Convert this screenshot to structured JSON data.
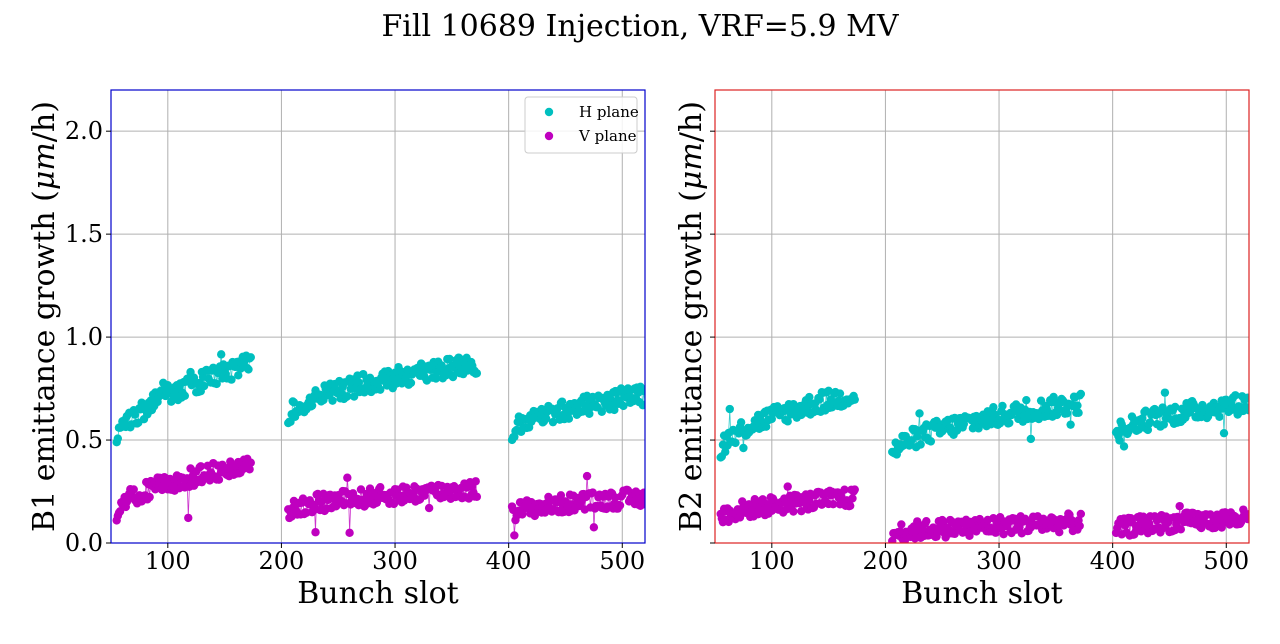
{
  "figure": {
    "title": "Fill 10689 Injection, VRF=5.9 MV",
    "colors": {
      "h": "#00bfbf",
      "v": "#bf00bf",
      "grid": "#b0b0b0"
    }
  },
  "chart_data": [
    {
      "type": "scatter",
      "panel": "B1",
      "frame_color": "#0000cc",
      "ylabel_prefix": "B1 emittance growth (",
      "ylabel_unit": "μm",
      "ylabel_suffix": "/h)",
      "xlabel": "Bunch slot",
      "xlim": [
        50,
        520
      ],
      "ylim": [
        0,
        2.2
      ],
      "xticks": [
        100,
        200,
        300,
        400,
        500
      ],
      "yticks": [
        0.0,
        0.5,
        1.0,
        1.5,
        2.0
      ],
      "ytick_labels": [
        "0.0",
        "0.5",
        "1.0",
        "1.5",
        "2.0"
      ],
      "show_yticklabels": true,
      "grid": true,
      "legend": {
        "placement": "top-right",
        "entries": [
          "H plane",
          "V plane"
        ]
      },
      "series": [
        {
          "name": "H plane",
          "segments": [
            {
              "x_start": 55,
              "x_end": 173,
              "y_start": 0.47,
              "y_end": 0.87
            },
            {
              "x_start": 206,
              "x_end": 372,
              "y_start": 0.6,
              "y_end": 0.87
            },
            {
              "x_start": 403,
              "x_end": 520,
              "y_start": 0.52,
              "y_end": 0.72
            }
          ]
        },
        {
          "name": "V plane",
          "segments": [
            {
              "x_start": 55,
              "x_end": 173,
              "y_start": 0.14,
              "y_end": 0.38
            },
            {
              "x_start": 206,
              "x_end": 372,
              "y_start": 0.15,
              "y_end": 0.26
            },
            {
              "x_start": 403,
              "x_end": 520,
              "y_start": 0.14,
              "y_end": 0.22
            }
          ]
        }
      ]
    },
    {
      "type": "scatter",
      "panel": "B2",
      "frame_color": "#dd2222",
      "ylabel_prefix": "B2 emittance growth (",
      "ylabel_unit": "μm",
      "ylabel_suffix": "/h)",
      "xlabel": "Bunch slot",
      "xlim": [
        50,
        520
      ],
      "ylim": [
        0,
        2.2
      ],
      "xticks": [
        100,
        200,
        300,
        400,
        500
      ],
      "yticks": [
        0.0,
        0.5,
        1.0,
        1.5,
        2.0
      ],
      "ytick_labels": [
        "",
        "",
        "",
        "",
        ""
      ],
      "show_yticklabels": false,
      "grid": true,
      "legend": null,
      "series": [
        {
          "name": "H plane",
          "segments": [
            {
              "x_start": 55,
              "x_end": 173,
              "y_start": 0.44,
              "y_end": 0.72
            },
            {
              "x_start": 206,
              "x_end": 372,
              "y_start": 0.42,
              "y_end": 0.68
            },
            {
              "x_start": 403,
              "x_end": 520,
              "y_start": 0.52,
              "y_end": 0.68
            }
          ]
        },
        {
          "name": "V plane",
          "segments": [
            {
              "x_start": 55,
              "x_end": 173,
              "y_start": 0.12,
              "y_end": 0.22
            },
            {
              "x_start": 206,
              "x_end": 372,
              "y_start": 0.04,
              "y_end": 0.1
            },
            {
              "x_start": 403,
              "x_end": 520,
              "y_start": 0.06,
              "y_end": 0.12
            }
          ]
        }
      ]
    }
  ]
}
